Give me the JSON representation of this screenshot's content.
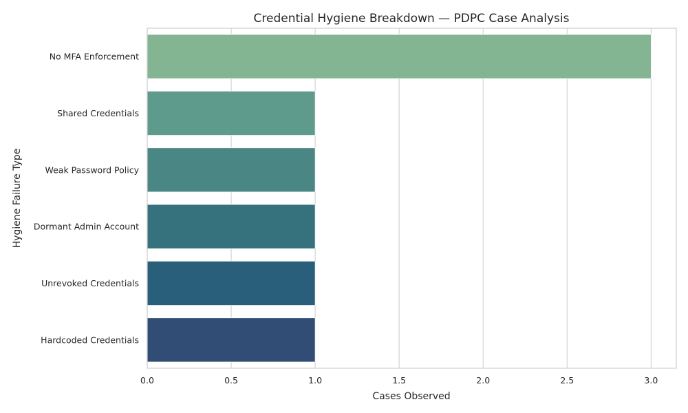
{
  "chart_data": {
    "type": "bar",
    "orientation": "horizontal",
    "title": "Credential Hygiene Breakdown — PDPC Case Analysis",
    "xlabel": "Cases Observed",
    "ylabel": "Hygiene Failure Type",
    "categories": [
      "No MFA Enforcement",
      "Shared Credentials",
      "Weak Password Policy",
      "Dormant Admin Account",
      "Unrevoked Credentials",
      "Hardcoded Credentials"
    ],
    "values": [
      3,
      1,
      1,
      1,
      1,
      1
    ],
    "colors": [
      "#84b593",
      "#5f9b8c",
      "#4a8784",
      "#35727e",
      "#295f7a",
      "#314d75"
    ],
    "xlim": [
      0,
      3.15
    ],
    "xticks": [
      0.0,
      0.5,
      1.0,
      1.5,
      2.0,
      2.5,
      3.0
    ],
    "xtick_labels": [
      "0.0",
      "0.5",
      "1.0",
      "1.5",
      "2.0",
      "2.5",
      "3.0"
    ],
    "grid": "vertical",
    "legend": "none"
  }
}
